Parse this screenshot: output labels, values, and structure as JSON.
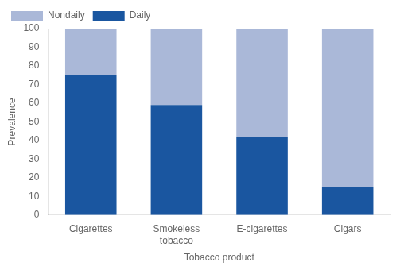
{
  "chart_data": {
    "type": "bar",
    "stacked": true,
    "categories": [
      "Cigarettes",
      "Smokeless\ntobacco",
      "E-cigarettes",
      "Cigars"
    ],
    "series": [
      {
        "name": "Nondaily",
        "color": "#aab8d8",
        "values": [
          25,
          41,
          58,
          85
        ]
      },
      {
        "name": "Daily",
        "color": "#1a56a0",
        "values": [
          75,
          59,
          42,
          15
        ]
      }
    ],
    "xlabel": "Tobacco product",
    "ylabel": "Prevalence",
    "ylim": [
      0,
      100
    ],
    "yticks": [
      0,
      10,
      20,
      30,
      40,
      50,
      60,
      70,
      80,
      90,
      100
    ],
    "grid": false,
    "legend": "upper left"
  }
}
